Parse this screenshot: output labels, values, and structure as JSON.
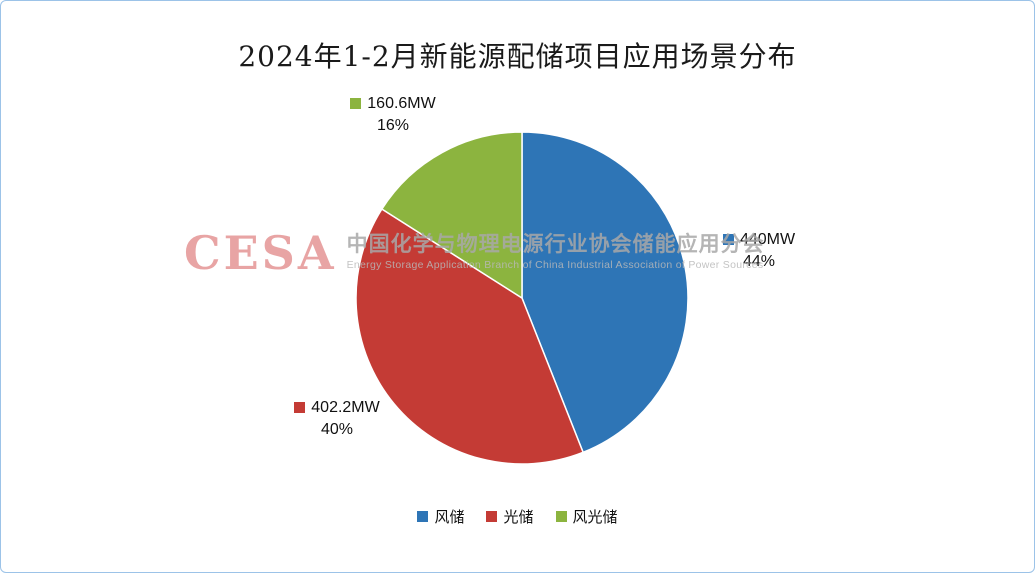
{
  "chart_data": {
    "type": "pie",
    "title": "2024年1-2月新能源配储项目应用场景分布",
    "start_angle_deg": 0,
    "direction": "clockwise",
    "legend_position": "bottom",
    "series": [
      {
        "name": "风储",
        "value_mw": 440,
        "percent": 44,
        "label": "440MW",
        "percent_label": "44%",
        "color": "#2E75B6"
      },
      {
        "name": "光储",
        "value_mw": 402.2,
        "percent": 40,
        "label": "402.2MW",
        "percent_label": "40%",
        "color": "#C43B35"
      },
      {
        "name": "风光储",
        "value_mw": 160.6,
        "percent": 16,
        "label": "160.6MW",
        "percent_label": "16%",
        "color": "#8CB43F"
      }
    ]
  },
  "watermark": {
    "logo": "CESA",
    "cn": "中国化学与物理电源行业协会储能应用分会",
    "en": "Energy Storage Application Branch of China Industrial Association of Power Sources"
  }
}
